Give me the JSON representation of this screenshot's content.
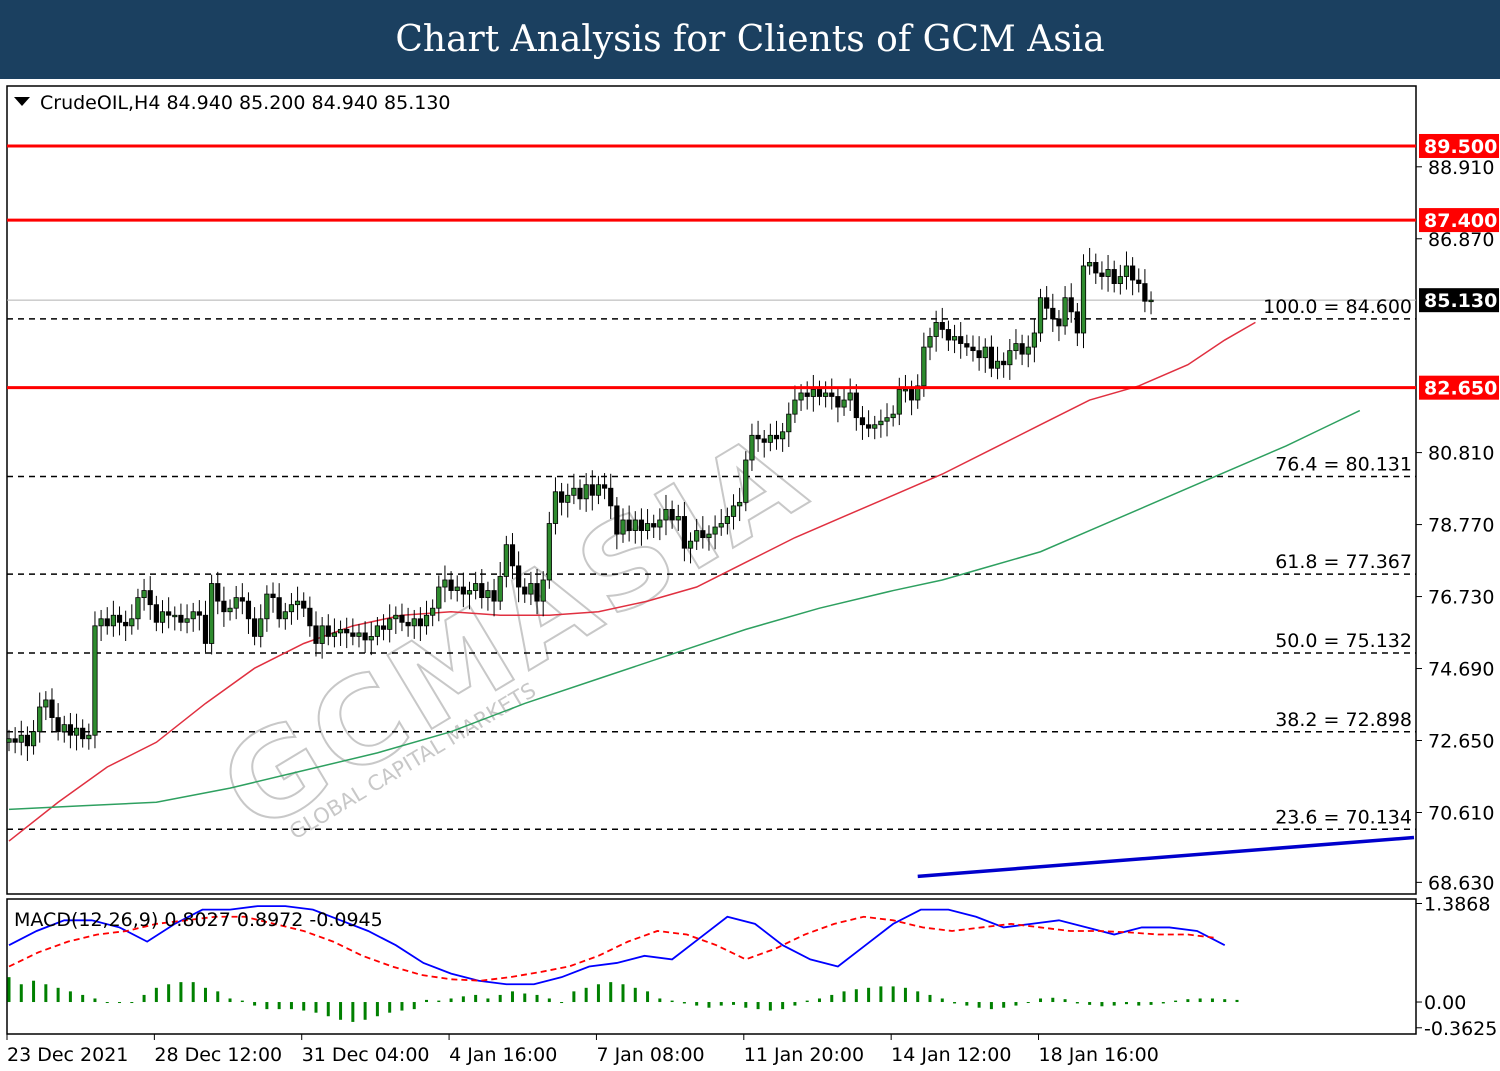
{
  "header": {
    "title": "Chart Analysis for Clients of GCM Asia"
  },
  "watermark": {
    "brand": "GCMASIA",
    "subtitle": "GLOBAL CAPITAL MARKETS"
  },
  "colors": {
    "banner": "#1b4060",
    "support_resistance": "#ff0000",
    "ma_fast": "#e03040",
    "ma_slow": "#2ea060",
    "trend": "#0000cc",
    "bull_candle": "#2e8b2e",
    "macd_line": "#0000ff",
    "macd_signal": "#ff0000",
    "histogram": "#008000"
  },
  "chart_data": [
    {
      "type": "candlestick",
      "symbol_info": "CrudeOIL,H4  84.940 85.200 84.940 85.130",
      "symbol": "CrudeOIL",
      "timeframe": "H4",
      "ohlc": {
        "open": 84.94,
        "high": 85.2,
        "low": 84.94,
        "close": 85.13
      },
      "current_price": 85.13,
      "current_price_label": "85.130",
      "ylim": [
        68.3,
        91.2
      ],
      "y_ticks": [
        88.91,
        86.87,
        80.81,
        78.77,
        76.73,
        74.69,
        72.65,
        70.61,
        68.63
      ],
      "y_tick_labels": [
        "88.910",
        "86.870",
        "80.810",
        "78.770",
        "76.730",
        "74.690",
        "72.650",
        "70.610",
        "68.630"
      ],
      "x_tick_labels": [
        "23 Dec 2021",
        "28 Dec 12:00",
        "31 Dec 04:00",
        "4 Jan 16:00",
        "7 Jan 08:00",
        "11 Jan 20:00",
        "14 Jan 12:00",
        "18 Jan 16:00"
      ],
      "x_tick_index": [
        0,
        24,
        48,
        72,
        96,
        120,
        144,
        168
      ],
      "horizontal_levels": [
        {
          "value": 89.5,
          "label": "89.500"
        },
        {
          "value": 87.4,
          "label": "87.400"
        },
        {
          "value": 82.65,
          "label": "82.650"
        }
      ],
      "fibonacci": [
        {
          "value": 84.6,
          "label": "100.0 = 84.600"
        },
        {
          "value": 80.131,
          "label": "76.4 = 80.131"
        },
        {
          "value": 77.367,
          "label": "61.8 = 77.367"
        },
        {
          "value": 75.132,
          "label": "50.0 = 75.132"
        },
        {
          "value": 72.898,
          "label": "38.2 = 72.898"
        },
        {
          "value": 70.134,
          "label": "23.6 = 70.134"
        }
      ],
      "closes": [
        72.7,
        72.6,
        72.8,
        72.5,
        72.9,
        73.6,
        73.8,
        73.3,
        72.9,
        73.1,
        72.8,
        73.0,
        72.7,
        72.8,
        75.9,
        76.1,
        75.9,
        76.2,
        76.0,
        75.9,
        76.1,
        76.7,
        76.9,
        76.5,
        76.0,
        76.3,
        76.2,
        76.2,
        76.0,
        76.1,
        76.3,
        76.2,
        75.4,
        77.1,
        76.6,
        76.3,
        76.4,
        76.7,
        76.6,
        76.1,
        75.6,
        76.1,
        76.8,
        76.7,
        76.1,
        76.3,
        76.5,
        76.6,
        76.4,
        75.9,
        75.4,
        75.9,
        75.6,
        75.7,
        75.8,
        75.7,
        75.6,
        75.7,
        75.5,
        75.6,
        75.9,
        75.8,
        76.1,
        76.2,
        76.0,
        75.9,
        76.1,
        75.9,
        76.2,
        76.4,
        77.0,
        77.2,
        76.9,
        77.0,
        76.8,
        76.9,
        77.1,
        76.7,
        76.9,
        76.6,
        77.3,
        78.2,
        77.6,
        77.0,
        76.8,
        77.1,
        76.6,
        77.2,
        78.8,
        79.7,
        79.4,
        79.6,
        79.8,
        79.5,
        79.9,
        79.6,
        79.9,
        79.8,
        79.3,
        78.5,
        78.9,
        78.6,
        78.9,
        78.6,
        78.8,
        78.7,
        78.9,
        79.2,
        78.9,
        79.0,
        78.1,
        78.3,
        78.6,
        78.4,
        78.5,
        78.7,
        78.8,
        79.0,
        79.3,
        79.4,
        80.6,
        81.3,
        81.2,
        81.1,
        81.3,
        81.2,
        81.4,
        81.9,
        82.3,
        82.5,
        82.4,
        82.6,
        82.4,
        82.5,
        82.4,
        82.1,
        82.3,
        82.5,
        81.8,
        81.6,
        81.5,
        81.6,
        81.7,
        81.8,
        81.9,
        82.6,
        82.6,
        82.3,
        82.7,
        83.8,
        84.1,
        84.5,
        84.3,
        84.0,
        84.1,
        83.9,
        83.8,
        83.7,
        83.5,
        83.8,
        83.2,
        83.4,
        83.3,
        83.7,
        83.9,
        83.6,
        83.8,
        84.2,
        85.2,
        84.9,
        84.6,
        84.4,
        85.2,
        84.8,
        84.2,
        86.1,
        86.2,
        85.9,
        85.8,
        86.0,
        85.6,
        85.8,
        86.1,
        85.7,
        85.6,
        85.1,
        85.13
      ],
      "ma_fast_values": [
        69.8,
        70.9,
        71.9,
        72.6,
        73.7,
        74.7,
        75.4,
        75.9,
        76.2,
        76.3,
        76.2,
        76.2,
        76.3,
        76.6,
        77.0,
        77.7,
        78.4,
        79.0,
        79.6,
        80.2,
        80.9,
        81.6,
        82.3,
        82.7,
        83.3,
        84.0,
        84.5
      ],
      "ma_fast_x_index": [
        0,
        8,
        16,
        24,
        32,
        40,
        48,
        56,
        64,
        72,
        80,
        88,
        96,
        104,
        112,
        120,
        128,
        136,
        144,
        152,
        160,
        168,
        176,
        184,
        192,
        198,
        203
      ],
      "ma_slow_values": [
        70.7,
        70.8,
        70.9,
        71.3,
        71.8,
        72.3,
        72.9,
        73.7,
        74.4,
        75.1,
        75.8,
        76.4,
        76.9,
        77.2,
        77.6,
        78.0,
        78.6,
        79.2,
        79.8,
        80.4,
        81.0,
        81.5,
        82.0
      ],
      "ma_slow_x_index": [
        0,
        12,
        24,
        36,
        48,
        60,
        72,
        84,
        96,
        108,
        120,
        132,
        144,
        152,
        160,
        168,
        176,
        184,
        192,
        200,
        208,
        214,
        220
      ],
      "trendline": {
        "x_index": [
          148,
          259
        ],
        "y": [
          68.8,
          69.9
        ]
      }
    },
    {
      "type": "macd",
      "label": "MACD(12,26,9) 0.8027 0.8972 -0.0945",
      "ylim": [
        -0.45,
        1.45
      ],
      "y_ticks": [
        1.3868,
        0.0,
        -0.3625
      ],
      "y_tick_labels": [
        "1.3868",
        "0.00",
        "-0.3625"
      ],
      "macd": [
        0.8,
        1.0,
        1.15,
        1.15,
        1.05,
        0.85,
        1.1,
        1.3,
        1.3,
        1.35,
        1.35,
        1.3,
        1.15,
        1.0,
        0.8,
        0.55,
        0.4,
        0.3,
        0.25,
        0.25,
        0.35,
        0.5,
        0.55,
        0.65,
        0.6,
        0.9,
        1.2,
        1.1,
        0.8,
        0.6,
        0.5,
        0.8,
        1.1,
        1.3,
        1.3,
        1.2,
        1.05,
        1.1,
        1.15,
        1.05,
        0.95,
        1.05,
        1.05,
        1.0,
        0.8
      ],
      "signal": [
        0.5,
        0.7,
        0.85,
        0.95,
        1.0,
        1.1,
        1.15,
        1.2,
        1.2,
        1.1,
        1.0,
        0.85,
        0.65,
        0.5,
        0.38,
        0.32,
        0.3,
        0.35,
        0.42,
        0.5,
        0.65,
        0.85,
        1.0,
        0.95,
        0.8,
        0.6,
        0.75,
        0.95,
        1.1,
        1.2,
        1.15,
        1.05,
        1.0,
        1.05,
        1.1,
        1.05,
        1.0,
        1.0,
        0.98,
        0.95,
        0.95,
        0.9
      ],
      "histogram": [
        0.35,
        0.25,
        0.3,
        0.25,
        0.2,
        0.15,
        0.1,
        0.05,
        0.0,
        0.0,
        0.0,
        0.1,
        0.2,
        0.25,
        0.28,
        0.28,
        0.2,
        0.15,
        0.05,
        0.02,
        -0.05,
        -0.1,
        -0.1,
        -0.1,
        -0.12,
        -0.15,
        -0.2,
        -0.25,
        -0.28,
        -0.25,
        -0.2,
        -0.15,
        -0.12,
        -0.1,
        0.03,
        0.02,
        0.05,
        0.08,
        0.1,
        0.05,
        0.1,
        0.15,
        0.12,
        0.1,
        0.05,
        0.0,
        0.15,
        0.2,
        0.25,
        0.28,
        0.25,
        0.2,
        0.15,
        0.05,
        0.02,
        -0.02,
        -0.05,
        -0.08,
        -0.05,
        -0.04,
        -0.08,
        -0.1,
        -0.12,
        -0.1,
        -0.05,
        0.02,
        0.05,
        0.1,
        0.15,
        0.18,
        0.2,
        0.22,
        0.22,
        0.2,
        0.15,
        0.1,
        0.05,
        -0.02,
        -0.05,
        -0.08,
        -0.1,
        -0.08,
        -0.05,
        0.0,
        0.05,
        0.06,
        0.04,
        -0.02,
        -0.04,
        -0.06,
        -0.05,
        -0.03,
        -0.05,
        -0.04,
        -0.02,
        0.02,
        0.04,
        0.05,
        0.05,
        0.04,
        0.03
      ]
    }
  ]
}
